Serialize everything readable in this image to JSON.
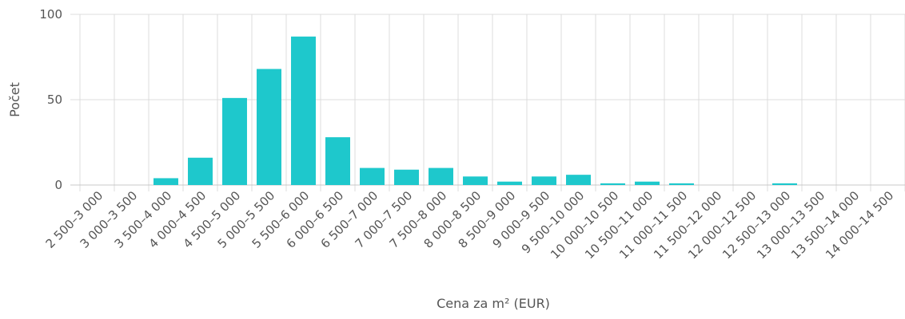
{
  "chart_data": {
    "type": "bar",
    "title": "",
    "xlabel": "Cena za m² (EUR)",
    "ylabel": "Počet",
    "ylim": [
      0,
      100
    ],
    "yticks": [
      0,
      50,
      100
    ],
    "grid": true,
    "bar_color": "#1ec8cc",
    "categories": [
      "2 500–3 000",
      "3 000–3 500",
      "3 500–4 000",
      "4 000–4 500",
      "4 500–5 000",
      "5 000–5 500",
      "5 500–6 000",
      "6 000–6 500",
      "6 500–7 000",
      "7 000–7 500",
      "7 500–8 000",
      "8 000–8 500",
      "8 500–9 000",
      "9 000–9 500",
      "9 500–10 000",
      "10 000–10 500",
      "10 500–11 000",
      "11 000–11 500",
      "11 500–12 000",
      "12 000–12 500",
      "12 500–13 000",
      "13 000–13 500",
      "13 500–14 000",
      "14 000–14 500"
    ],
    "values": [
      0,
      0,
      4,
      16,
      51,
      68,
      87,
      28,
      10,
      9,
      10,
      5,
      2,
      5,
      6,
      1,
      2,
      1,
      0,
      0,
      1,
      0,
      0,
      0
    ]
  }
}
